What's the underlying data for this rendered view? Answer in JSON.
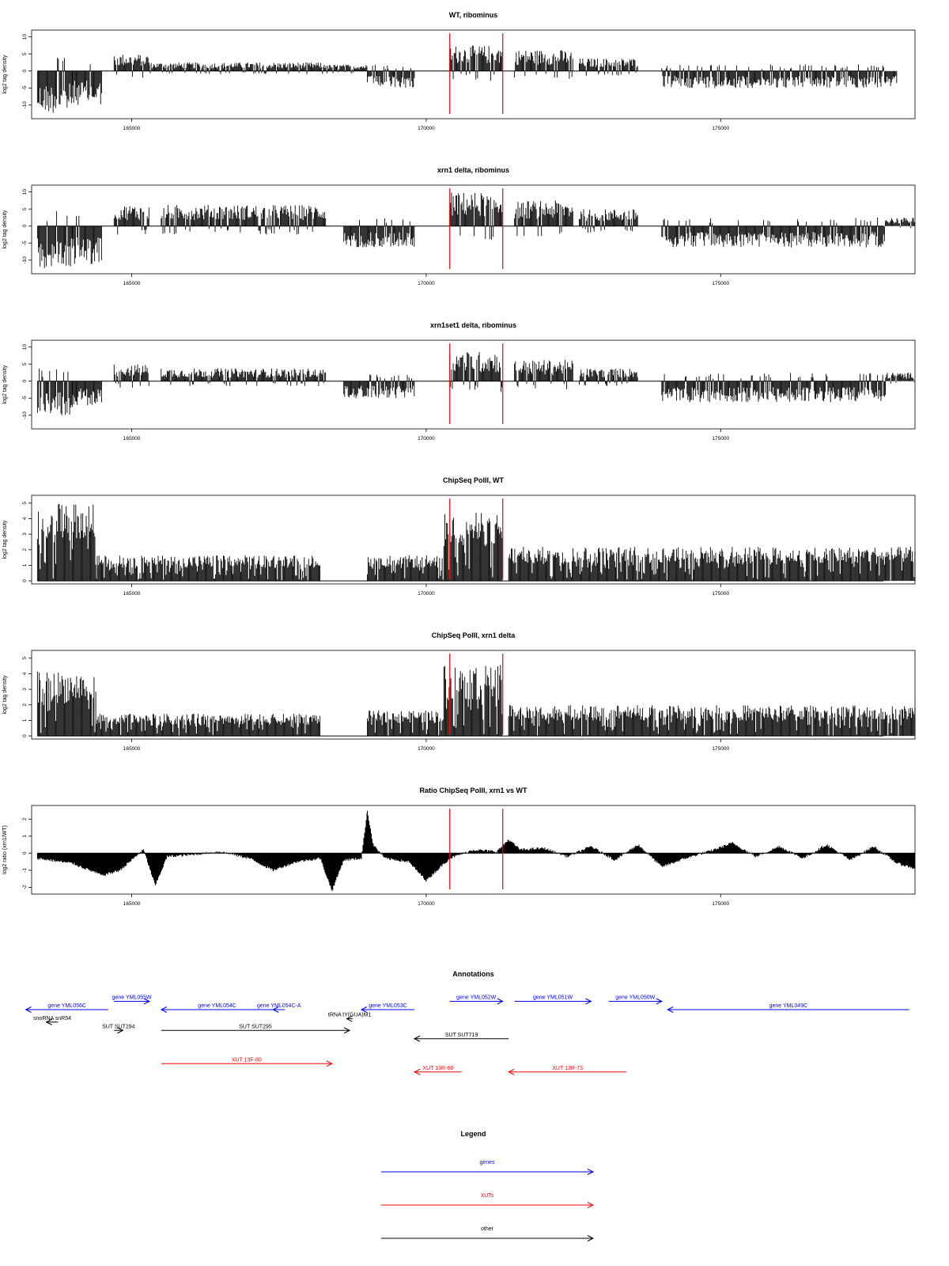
{
  "colors": {
    "signal": "#000000",
    "marker": "#ff0000",
    "genes": "#0000ff",
    "xuts": "#ff0000",
    "other": "#000000"
  },
  "chart_data": [
    {
      "type": "bar",
      "title": "WT, ribominus",
      "ylabel": "log2 tag density",
      "xlim": [
        163300,
        178300
      ],
      "ylim": [
        -14,
        12
      ],
      "xticks": [
        165000,
        170000,
        175000
      ],
      "xtick_labels": [
        "165000",
        "170000",
        "175000"
      ],
      "yticks": [
        -10,
        -5,
        0,
        5,
        10
      ],
      "ytick_labels": [
        "-10",
        "-5",
        "0",
        "5",
        "10"
      ],
      "markers": [
        170400,
        171300
      ],
      "segments": [
        {
          "x": [
            163400,
            164000
          ],
          "y": -10
        },
        {
          "x": [
            164000,
            164500
          ],
          "y": -8
        },
        {
          "x": [
            164700,
            165300
          ],
          "y": 4
        },
        {
          "x": [
            165300,
            168300
          ],
          "y": 2
        },
        {
          "x": [
            168300,
            169000
          ],
          "y": 1.5
        },
        {
          "x": [
            169000,
            169800
          ],
          "y": -4
        },
        {
          "x": [
            170400,
            171300
          ],
          "y": 6
        },
        {
          "x": [
            171500,
            172500
          ],
          "y": 5
        },
        {
          "x": [
            172600,
            173600
          ],
          "y": 3
        },
        {
          "x": [
            174000,
            178000
          ],
          "y": -4
        }
      ]
    },
    {
      "type": "bar",
      "title": "xrn1 delta, ribominus",
      "ylabel": "log2 tag density",
      "xlim": [
        163300,
        178300
      ],
      "ylim": [
        -14,
        12
      ],
      "xticks": [
        165000,
        170000,
        175000
      ],
      "xtick_labels": [
        "165000",
        "170000",
        "175000"
      ],
      "yticks": [
        -10,
        -5,
        0,
        5,
        10
      ],
      "ytick_labels": [
        "-10",
        "-5",
        "0",
        "5",
        "10"
      ],
      "markers": [
        170400,
        171300
      ],
      "segments": [
        {
          "x": [
            163400,
            164000
          ],
          "y": -10
        },
        {
          "x": [
            164000,
            164500
          ],
          "y": -9
        },
        {
          "x": [
            164700,
            165300
          ],
          "y": 5
        },
        {
          "x": [
            165500,
            168300
          ],
          "y": 5
        },
        {
          "x": [
            168600,
            169800
          ],
          "y": -5
        },
        {
          "x": [
            170400,
            171300
          ],
          "y": 8
        },
        {
          "x": [
            171500,
            172500
          ],
          "y": 6
        },
        {
          "x": [
            172600,
            173600
          ],
          "y": 4
        },
        {
          "x": [
            174000,
            177800
          ],
          "y": -5
        },
        {
          "x": [
            177800,
            178300
          ],
          "y": 2
        }
      ]
    },
    {
      "type": "bar",
      "title": "xrn1set1 delta, ribominus",
      "ylabel": "log2 tag density",
      "xlim": [
        163300,
        178300
      ],
      "ylim": [
        -14,
        12
      ],
      "xticks": [
        165000,
        170000,
        175000
      ],
      "xtick_labels": [
        "165000",
        "170000",
        "175000"
      ],
      "yticks": [
        -10,
        -5,
        0,
        5,
        10
      ],
      "ytick_labels": [
        "-10",
        "-5",
        "0",
        "5",
        "10"
      ],
      "markers": [
        170400,
        171300
      ],
      "segments": [
        {
          "x": [
            163400,
            164000
          ],
          "y": -8
        },
        {
          "x": [
            164000,
            164500
          ],
          "y": -6
        },
        {
          "x": [
            164700,
            165300
          ],
          "y": 4
        },
        {
          "x": [
            165500,
            168300
          ],
          "y": 3
        },
        {
          "x": [
            168600,
            169800
          ],
          "y": -4
        },
        {
          "x": [
            170400,
            171300
          ],
          "y": 7
        },
        {
          "x": [
            171500,
            172500
          ],
          "y": 5
        },
        {
          "x": [
            172600,
            173600
          ],
          "y": 3
        },
        {
          "x": [
            174000,
            177800
          ],
          "y": -5
        },
        {
          "x": [
            177800,
            178300
          ],
          "y": 2
        }
      ]
    },
    {
      "type": "bar",
      "title": "ChipSeq PolII, WT",
      "ylabel": "log2 tag density",
      "xlim": [
        163300,
        178300
      ],
      "ylim": [
        -0.2,
        5.5
      ],
      "xticks": [
        165000,
        170000,
        175000
      ],
      "xtick_labels": [
        "165000",
        "170000",
        "175000"
      ],
      "yticks": [
        0,
        1,
        2,
        3,
        4,
        5
      ],
      "ytick_labels": [
        "0",
        "1",
        "2",
        "3",
        "4",
        "5"
      ],
      "markers": [
        170400,
        171300
      ],
      "segments": [
        {
          "x": [
            163400,
            164400
          ],
          "y": 4.5
        },
        {
          "x": [
            164400,
            168200
          ],
          "y": 1.5
        },
        {
          "x": [
            169000,
            170300
          ],
          "y": 1.5
        },
        {
          "x": [
            170300,
            171300
          ],
          "y": 4
        },
        {
          "x": [
            171400,
            178300
          ],
          "y": 2
        }
      ]
    },
    {
      "type": "bar",
      "title": "ChipSeq PolII, xrn1 delta",
      "ylabel": "log2 tag density",
      "xlim": [
        163300,
        178300
      ],
      "ylim": [
        -0.2,
        5.5
      ],
      "xticks": [
        165000,
        170000,
        175000
      ],
      "xtick_labels": [
        "165000",
        "170000",
        "175000"
      ],
      "yticks": [
        0,
        1,
        2,
        3,
        4,
        5
      ],
      "ytick_labels": [
        "0",
        "1",
        "2",
        "3",
        "4",
        "5"
      ],
      "markers": [
        170400,
        171300
      ],
      "segments": [
        {
          "x": [
            163400,
            164400
          ],
          "y": 3.8
        },
        {
          "x": [
            164400,
            168200
          ],
          "y": 1.3
        },
        {
          "x": [
            169000,
            170300
          ],
          "y": 1.5
        },
        {
          "x": [
            170300,
            171300
          ],
          "y": 4.2
        },
        {
          "x": [
            171400,
            178300
          ],
          "y": 1.8
        }
      ]
    },
    {
      "type": "area",
      "title": "Ratio ChipSeq PolII, xrn1 vs WT",
      "ylabel": "log2 ratio (xrn1/WT)",
      "xlim": [
        163300,
        178300
      ],
      "ylim": [
        -2.4,
        2.8
      ],
      "xticks": [
        165000,
        170000,
        175000
      ],
      "xtick_labels": [
        "165000",
        "170000",
        "175000"
      ],
      "yticks": [
        -2,
        -1,
        0,
        1,
        2
      ],
      "ytick_labels": [
        "-2",
        "-1",
        "0",
        "1",
        "2"
      ],
      "markers": [
        170400,
        171300
      ],
      "x": [
        163400,
        164000,
        164500,
        164800,
        165200,
        165400,
        165600,
        166000,
        166500,
        167000,
        167400,
        167800,
        168200,
        168400,
        168600,
        168900,
        169000,
        169100,
        169300,
        169700,
        170000,
        170400,
        170800,
        171200,
        171400,
        171600,
        172000,
        172400,
        172800,
        173200,
        173600,
        174000,
        174400,
        174800,
        175200,
        175600,
        176000,
        176400,
        176800,
        177200,
        177600,
        178000,
        178300
      ],
      "y": [
        -0.3,
        -0.6,
        -1.3,
        -1.0,
        0.2,
        -1.9,
        -0.2,
        -0.1,
        0.1,
        -0.3,
        -1.0,
        -0.5,
        -0.3,
        -2.2,
        -0.4,
        -0.3,
        2.5,
        0.5,
        -0.3,
        -0.5,
        -1.6,
        -0.3,
        0.2,
        0.1,
        0.8,
        0.2,
        0.3,
        -0.2,
        0.4,
        -0.4,
        0.5,
        -0.8,
        -0.3,
        0.1,
        0.6,
        -0.2,
        0.4,
        -0.3,
        0.5,
        -0.4,
        0.4,
        -0.6,
        -0.9
      ]
    }
  ],
  "annotations": {
    "title": "Annotations",
    "items": [
      {
        "label": "gene YML056C",
        "kind": "genes",
        "x": [
          163200,
          164600
        ],
        "dir": "left",
        "row": 0
      },
      {
        "label": "gene YML055W",
        "kind": "genes",
        "x": [
          164700,
          165300
        ],
        "dir": "right",
        "row": -1
      },
      {
        "label": "gene YML054C",
        "kind": "genes",
        "x": [
          165500,
          167400
        ],
        "dir": "left",
        "row": 0
      },
      {
        "label": "gene YML054C-A",
        "kind": "genes",
        "x": [
          167400,
          167600
        ],
        "dir": "left",
        "row": 0
      },
      {
        "label": "gene YML053C",
        "kind": "genes",
        "x": [
          168900,
          169800
        ],
        "dir": "left",
        "row": 0
      },
      {
        "label": "gene YML052W",
        "kind": "genes",
        "x": [
          170400,
          171300
        ],
        "dir": "right",
        "row": -1
      },
      {
        "label": "gene YML051W",
        "kind": "genes",
        "x": [
          171500,
          172800
        ],
        "dir": "right",
        "row": -1
      },
      {
        "label": "gene YML050W",
        "kind": "genes",
        "x": [
          173100,
          174000
        ],
        "dir": "right",
        "row": -1
      },
      {
        "label": "gene YML049C",
        "kind": "genes",
        "x": [
          174100,
          178200
        ],
        "dir": "left",
        "row": 0
      },
      {
        "label": "snoRNA snR54",
        "kind": "other",
        "x": [
          163550,
          163750
        ],
        "dir": "left",
        "row": 1.5
      },
      {
        "label": "SUT SUT294",
        "kind": "other",
        "x": [
          164700,
          164850
        ],
        "dir": "right",
        "row": 2.5
      },
      {
        "label": "SUT SUT295",
        "kind": "other",
        "x": [
          165500,
          168700
        ],
        "dir": "right",
        "row": 2.5
      },
      {
        "label": "tRNA tY(GUA)M1",
        "kind": "other",
        "x": [
          168650,
          168750
        ],
        "dir": "left",
        "row": 1.1
      },
      {
        "label": "SUT SUT719",
        "kind": "other",
        "x": [
          169800,
          171400
        ],
        "dir": "left",
        "row": 3.5
      },
      {
        "label": "XUT 13F-80",
        "kind": "xuts",
        "x": [
          165500,
          168400
        ],
        "dir": "right",
        "row": 6.5
      },
      {
        "label": "XUT 13R-69",
        "kind": "xuts",
        "x": [
          169800,
          170600
        ],
        "dir": "left",
        "row": 7.5
      },
      {
        "label": "XUT 13R-73",
        "kind": "xuts",
        "x": [
          171400,
          173400
        ],
        "dir": "left",
        "row": 7.5
      }
    ]
  },
  "legend": {
    "title": "Legend",
    "items": [
      {
        "label": "genes",
        "kind": "genes"
      },
      {
        "label": "XUTs",
        "kind": "xuts"
      },
      {
        "label": "other",
        "kind": "other"
      }
    ]
  }
}
